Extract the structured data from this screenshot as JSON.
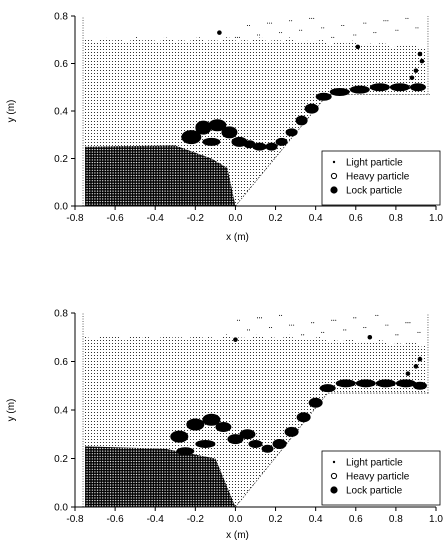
{
  "chart_data": [
    {
      "type": "scatter",
      "xlabel": "x (m)",
      "ylabel": "y (m)",
      "xlim": [
        -0.8,
        1.0
      ],
      "ylim": [
        0.0,
        0.8
      ],
      "x_ticks": [
        "-0.8",
        "-0.6",
        "-0.4",
        "-0.2",
        "0.0",
        "0.2",
        "0.4",
        "0.6",
        "0.8",
        "1.0"
      ],
      "y_ticks": [
        "0.0",
        "0.2",
        "0.4",
        "0.6",
        "0.8"
      ],
      "legend_position": "bottom-right",
      "series": [
        {
          "name": "Light particle",
          "marker": "small-dot"
        },
        {
          "name": "Heavy particle",
          "marker": "open-circle"
        },
        {
          "name": "Lock particle",
          "marker": "filled-circle"
        }
      ],
      "lock_particle_points": [
        [
          -0.08,
          0.73
        ],
        [
          0.61,
          0.67
        ],
        [
          0.92,
          0.64
        ],
        [
          0.93,
          0.61
        ],
        [
          0.9,
          0.57
        ],
        [
          0.88,
          0.54
        ]
      ]
    },
    {
      "type": "scatter",
      "xlabel": "x (m)",
      "ylabel": "y (m)",
      "xlim": [
        -0.8,
        1.0
      ],
      "ylim": [
        0.0,
        0.8
      ],
      "x_ticks": [
        "-0.8",
        "-0.6",
        "-0.4",
        "-0.2",
        "0.0",
        "0.2",
        "0.4",
        "0.6",
        "0.8",
        "1.0"
      ],
      "y_ticks": [
        "0.0",
        "0.2",
        "0.4",
        "0.6",
        "0.8"
      ],
      "legend_position": "bottom-right",
      "series": [
        {
          "name": "Light particle",
          "marker": "small-dot"
        },
        {
          "name": "Heavy particle",
          "marker": "open-circle"
        },
        {
          "name": "Lock particle",
          "marker": "filled-circle"
        }
      ],
      "lock_particle_points": [
        [
          0.0,
          0.69
        ],
        [
          0.67,
          0.7
        ],
        [
          0.92,
          0.61
        ],
        [
          0.9,
          0.58
        ],
        [
          0.86,
          0.55
        ]
      ]
    }
  ]
}
